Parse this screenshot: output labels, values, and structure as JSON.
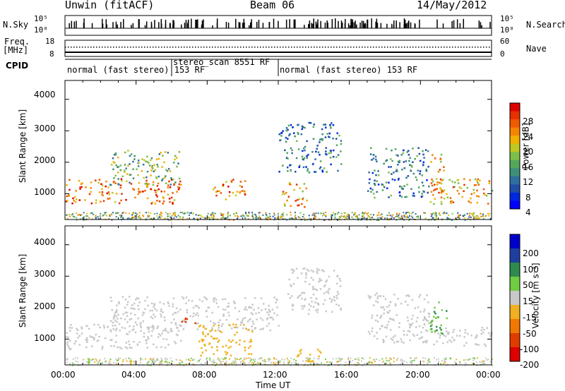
{
  "header": {
    "station": "Unwin (fitACF)",
    "beam": "Beam 06",
    "date": "14/May/2012"
  },
  "top_panels": {
    "nsky_label": "N.Sky",
    "nsky_ticks": [
      "10^5",
      "10^0"
    ],
    "nsearch_label": "N.Search",
    "nsearch_ticks": [
      "10^5",
      "10^0"
    ],
    "freq_label_1": "Freq.",
    "freq_label_2": "[MHz]",
    "freq_ticks": [
      "18",
      "8"
    ],
    "nave_label": "Nave",
    "nave_ticks": [
      "60",
      "0"
    ],
    "cpid_label": "CPID",
    "cpid_segments": [
      {
        "label": "normal (fast stereo) 153 RF",
        "start_hour": 0,
        "end_hour": 6
      },
      {
        "label": "stereo_scan 8551 RF",
        "start_hour": 6,
        "end_hour": 12
      },
      {
        "label": "normal (fast stereo) 153 RF",
        "start_hour": 12,
        "end_hour": 24
      }
    ]
  },
  "chart_data": [
    {
      "type": "heatmap",
      "title": "Power",
      "xlabel": "Time UT",
      "ylabel": "Slant Range [km]",
      "xlim": [
        0,
        24
      ],
      "ylim": [
        180,
        4600
      ],
      "y_ticks": [
        "1000",
        "2000",
        "3000",
        "4000"
      ],
      "x_ticks": [
        "00:00",
        "04:00",
        "08:00",
        "12:00",
        "16:00",
        "20:00",
        "00:00"
      ],
      "colorbar": {
        "label": "Power [dB]",
        "ticks": [
          "28",
          "24",
          "20",
          "16",
          "12",
          "8",
          "4"
        ],
        "range": [
          0,
          30
        ],
        "colors": [
          "#0000ff",
          "#0028e0",
          "#1f4ea8",
          "#2e6fa0",
          "#3d8f7a",
          "#55a85a",
          "#7dbe48",
          "#c0c820",
          "#f2b000",
          "#f58400",
          "#f05a00",
          "#e63000",
          "#dc0000"
        ]
      },
      "regions": [
        {
          "t0": 0.0,
          "t1": 6.5,
          "r0": 700,
          "r1": 1500,
          "power": 24
        },
        {
          "t0": 2.5,
          "t1": 6.5,
          "r0": 1300,
          "r1": 2400,
          "power": 14
        },
        {
          "t0": 8.3,
          "t1": 10.2,
          "r0": 800,
          "r1": 1500,
          "power": 24
        },
        {
          "t0": 12.2,
          "t1": 13.6,
          "r0": 600,
          "r1": 1400,
          "power": 22
        },
        {
          "t0": 12.0,
          "t1": 15.5,
          "r0": 1700,
          "r1": 3300,
          "power": 8
        },
        {
          "t0": 17.0,
          "t1": 20.5,
          "r0": 900,
          "r1": 2500,
          "power": 9
        },
        {
          "t0": 20.5,
          "t1": 24.0,
          "r0": 700,
          "r1": 1500,
          "power": 20
        },
        {
          "t0": 20.5,
          "t1": 21.3,
          "r0": 1000,
          "r1": 2300,
          "power": 22
        }
      ]
    },
    {
      "type": "heatmap",
      "title": "Velocity",
      "xlabel": "Time UT",
      "ylabel": "Slant Range [km]",
      "xlim": [
        0,
        24
      ],
      "ylim": [
        180,
        4600
      ],
      "y_ticks": [
        "1000",
        "2000",
        "3000",
        "4000"
      ],
      "x_ticks": [
        "00:00",
        "04:00",
        "08:00",
        "12:00",
        "16:00",
        "20:00",
        "00:00"
      ],
      "colorbar": {
        "label": "Velocity [m s^-1]",
        "ticks": [
          "200",
          "100",
          "50",
          "15",
          "-15",
          "-50",
          "-100",
          "-200"
        ],
        "colors": [
          "#0000cc",
          "#1f3fa0",
          "#2e8a4e",
          "#70cc40",
          "#c8c8c8",
          "#f0b020",
          "#f07800",
          "#e03c00",
          "#dd0000"
        ]
      },
      "regions": [
        {
          "t0": 0.0,
          "t1": 6.5,
          "r0": 700,
          "r1": 1500,
          "velocity": 0
        },
        {
          "t0": 2.5,
          "t1": 12.0,
          "r0": 1300,
          "r1": 2400,
          "velocity": 0
        },
        {
          "t0": 6.5,
          "t1": 7.3,
          "r0": 1500,
          "r1": 1800,
          "velocity": -150
        },
        {
          "t0": 7.5,
          "t1": 10.5,
          "r0": 500,
          "r1": 1500,
          "velocity": -40
        },
        {
          "t0": 12.5,
          "t1": 15.5,
          "r0": 1800,
          "r1": 3300,
          "velocity": 0
        },
        {
          "t0": 13.0,
          "t1": 14.5,
          "r0": 300,
          "r1": 700,
          "velocity": -40
        },
        {
          "t0": 17.0,
          "t1": 20.5,
          "r0": 900,
          "r1": 2500,
          "velocity": 0
        },
        {
          "t0": 20.5,
          "t1": 24.0,
          "r0": 800,
          "r1": 1400,
          "velocity": 0
        },
        {
          "t0": 20.5,
          "t1": 21.5,
          "r0": 1200,
          "r1": 2300,
          "velocity": 30
        }
      ]
    }
  ]
}
